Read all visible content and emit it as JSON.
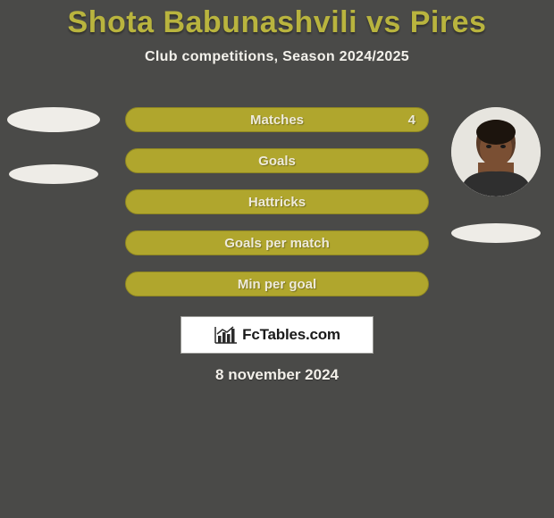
{
  "title": {
    "text": "Shota Babunashvili vs Pires",
    "color": "#b9b43e",
    "fontsize": 34
  },
  "subtitle": {
    "text": "Club competitions, Season 2024/2025",
    "color": "#f3f1eb",
    "fontsize": 16
  },
  "date": {
    "text": "8 november 2024",
    "color": "#f2efe9",
    "fontsize": 17
  },
  "background_color": "#4a4a48",
  "stats": {
    "bar_bg": "#b0a62d",
    "bar_border": "#8f8722",
    "label_color": "#eeeada",
    "value_color": "#eceada",
    "label_fontsize": 15,
    "rows": [
      {
        "label": "Matches",
        "right_value": "4"
      },
      {
        "label": "Goals",
        "right_value": ""
      },
      {
        "label": "Hattricks",
        "right_value": ""
      },
      {
        "label": "Goals per match",
        "right_value": ""
      },
      {
        "label": "Min per goal",
        "right_value": ""
      }
    ]
  },
  "players": {
    "left": {
      "name": "Shota Babunashvili",
      "avatar": "blank"
    },
    "right": {
      "name": "Pires",
      "avatar": "photo"
    }
  },
  "logo": {
    "text": "FcTables.com",
    "box_bg": "#ffffff",
    "box_border": "#9a9a96",
    "bar_colors": [
      "#2a2a2a",
      "#2a2a2a",
      "#2a2a2a",
      "#2a2a2a",
      "#2a2a2a"
    ]
  }
}
